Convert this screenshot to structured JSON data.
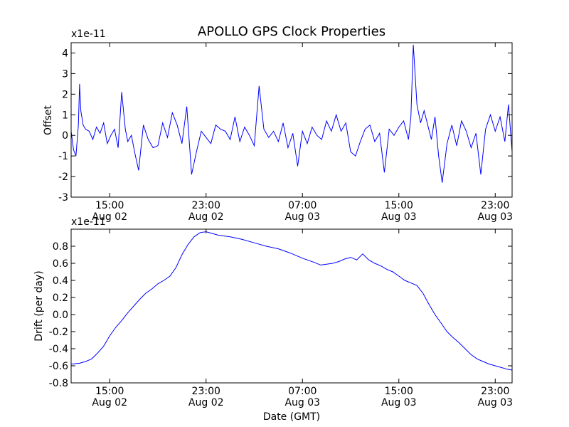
{
  "chart_data": [
    {
      "type": "line",
      "title": "APOLLO GPS Clock Properties",
      "xlabel": "",
      "ylabel": "Offset",
      "scale_label": "x1e-11",
      "ylim": [
        -3,
        4.5
      ],
      "yticks": [
        -3,
        -2,
        -1,
        0,
        1,
        2,
        3,
        4
      ],
      "ytick_labels": [
        "-3",
        "-2",
        "-1",
        "0",
        "1",
        "2",
        "3",
        "4"
      ],
      "xlim": [
        11.8,
        48.4
      ],
      "xticks": [
        15,
        23,
        31,
        39,
        47
      ],
      "xtick_labels": [
        {
          "time": "15:00",
          "date": "Aug 02"
        },
        {
          "time": "23:00",
          "date": "Aug 02"
        },
        {
          "time": "07:00",
          "date": "Aug 03"
        },
        {
          "time": "15:00",
          "date": "Aug 03"
        },
        {
          "time": "23:00",
          "date": "Aug 03"
        }
      ],
      "series": [
        {
          "name": "offset",
          "color": "#0000ff",
          "x": [
            11.8,
            12.0,
            12.2,
            12.4,
            12.5,
            12.6,
            12.8,
            13.0,
            13.3,
            13.6,
            13.9,
            14.2,
            14.5,
            14.8,
            15.1,
            15.4,
            15.7,
            16.0,
            16.3,
            16.5,
            16.8,
            17.1,
            17.4,
            17.8,
            18.2,
            18.6,
            19.0,
            19.4,
            19.8,
            20.2,
            20.6,
            21.0,
            21.4,
            21.8,
            22.2,
            22.6,
            23.0,
            23.4,
            23.8,
            24.2,
            24.6,
            25.0,
            25.4,
            25.8,
            26.2,
            26.6,
            27.0,
            27.4,
            27.8,
            28.2,
            28.6,
            29.0,
            29.4,
            29.8,
            30.2,
            30.6,
            31.0,
            31.4,
            31.8,
            32.2,
            32.6,
            33.0,
            33.4,
            33.8,
            34.2,
            34.6,
            35.0,
            35.4,
            35.8,
            36.2,
            36.6,
            37.0,
            37.4,
            37.8,
            38.2,
            38.6,
            39.0,
            39.4,
            39.8,
            40.0,
            40.2,
            40.5,
            40.8,
            41.1,
            41.4,
            41.7,
            42.0,
            42.3,
            42.6,
            43.0,
            43.4,
            43.8,
            44.2,
            44.6,
            45.0,
            45.4,
            45.8,
            46.2,
            46.6,
            47.0,
            47.4,
            47.8,
            48.1,
            48.4
          ],
          "y": [
            0.2,
            -0.7,
            -1.0,
            0.5,
            2.5,
            1.2,
            0.5,
            0.3,
            0.2,
            -0.2,
            0.4,
            0.1,
            0.6,
            -0.4,
            0.0,
            0.3,
            -0.6,
            2.1,
            0.3,
            -0.3,
            0.0,
            -0.9,
            -1.7,
            0.5,
            -0.2,
            -0.6,
            -0.5,
            0.6,
            -0.1,
            1.1,
            0.5,
            -0.4,
            1.4,
            -1.9,
            -0.8,
            0.2,
            -0.1,
            -0.4,
            0.5,
            0.3,
            0.2,
            -0.2,
            0.9,
            -0.3,
            0.4,
            0.0,
            -0.5,
            2.4,
            0.3,
            -0.1,
            0.2,
            -0.3,
            0.6,
            -0.6,
            0.1,
            -1.5,
            0.2,
            -0.4,
            0.4,
            0.0,
            -0.2,
            0.7,
            0.2,
            1.0,
            0.2,
            0.6,
            -0.8,
            -1.0,
            -0.3,
            0.3,
            0.5,
            -0.3,
            0.1,
            -1.8,
            0.3,
            0.0,
            0.4,
            0.7,
            -0.2,
            0.9,
            4.4,
            1.5,
            0.6,
            1.2,
            0.5,
            -0.2,
            0.9,
            -1.0,
            -2.3,
            -0.4,
            0.5,
            -0.5,
            0.7,
            0.2,
            -0.6,
            0.1,
            -1.9,
            0.3,
            1.0,
            0.2,
            0.9,
            -0.3,
            1.5,
            -0.8
          ]
        }
      ]
    },
    {
      "type": "line",
      "title": "",
      "xlabel": "Date (GMT)",
      "ylabel": "Drift (per day)",
      "scale_label": "x1e-11",
      "ylim": [
        -0.8,
        1.0
      ],
      "yticks": [
        -0.8,
        -0.6,
        -0.4,
        -0.2,
        0.0,
        0.2,
        0.4,
        0.6,
        0.8
      ],
      "ytick_labels": [
        "-0.8",
        "-0.6",
        "-0.4",
        "-0.2",
        "0.0",
        "0.2",
        "0.4",
        "0.6",
        "0.8"
      ],
      "xlim": [
        11.8,
        48.4
      ],
      "xticks": [
        15,
        23,
        31,
        39,
        47
      ],
      "xtick_labels": [
        {
          "time": "15:00",
          "date": "Aug 02"
        },
        {
          "time": "23:00",
          "date": "Aug 02"
        },
        {
          "time": "07:00",
          "date": "Aug 03"
        },
        {
          "time": "15:00",
          "date": "Aug 03"
        },
        {
          "time": "23:00",
          "date": "Aug 03"
        }
      ],
      "series": [
        {
          "name": "drift",
          "color": "#0000ff",
          "x": [
            11.8,
            12.5,
            13.0,
            13.5,
            14.0,
            14.5,
            15.0,
            15.5,
            16.0,
            16.5,
            17.0,
            17.5,
            18.0,
            18.5,
            19.0,
            19.5,
            20.0,
            20.5,
            21.0,
            21.5,
            22.0,
            22.5,
            23.0,
            23.5,
            24.0,
            25.0,
            26.0,
            27.0,
            28.0,
            29.0,
            30.0,
            31.0,
            32.0,
            32.5,
            33.0,
            33.5,
            34.0,
            34.5,
            35.0,
            35.5,
            36.0,
            36.5,
            37.0,
            37.5,
            38.0,
            38.5,
            39.0,
            39.5,
            40.0,
            40.5,
            41.0,
            41.5,
            42.0,
            42.5,
            43.0,
            43.5,
            44.0,
            44.5,
            45.0,
            45.5,
            46.0,
            46.5,
            47.0,
            47.5,
            48.0,
            48.4
          ],
          "y": [
            -0.58,
            -0.57,
            -0.55,
            -0.52,
            -0.45,
            -0.37,
            -0.25,
            -0.15,
            -0.07,
            0.02,
            0.1,
            0.18,
            0.25,
            0.3,
            0.36,
            0.4,
            0.45,
            0.55,
            0.7,
            0.82,
            0.91,
            0.96,
            0.97,
            0.95,
            0.93,
            0.91,
            0.88,
            0.84,
            0.8,
            0.77,
            0.72,
            0.66,
            0.61,
            0.58,
            0.59,
            0.6,
            0.62,
            0.65,
            0.67,
            0.64,
            0.71,
            0.64,
            0.6,
            0.57,
            0.53,
            0.5,
            0.45,
            0.4,
            0.37,
            0.34,
            0.25,
            0.12,
            0.0,
            -0.1,
            -0.2,
            -0.27,
            -0.33,
            -0.4,
            -0.47,
            -0.52,
            -0.55,
            -0.58,
            -0.6,
            -0.62,
            -0.64,
            -0.65
          ]
        }
      ]
    }
  ]
}
